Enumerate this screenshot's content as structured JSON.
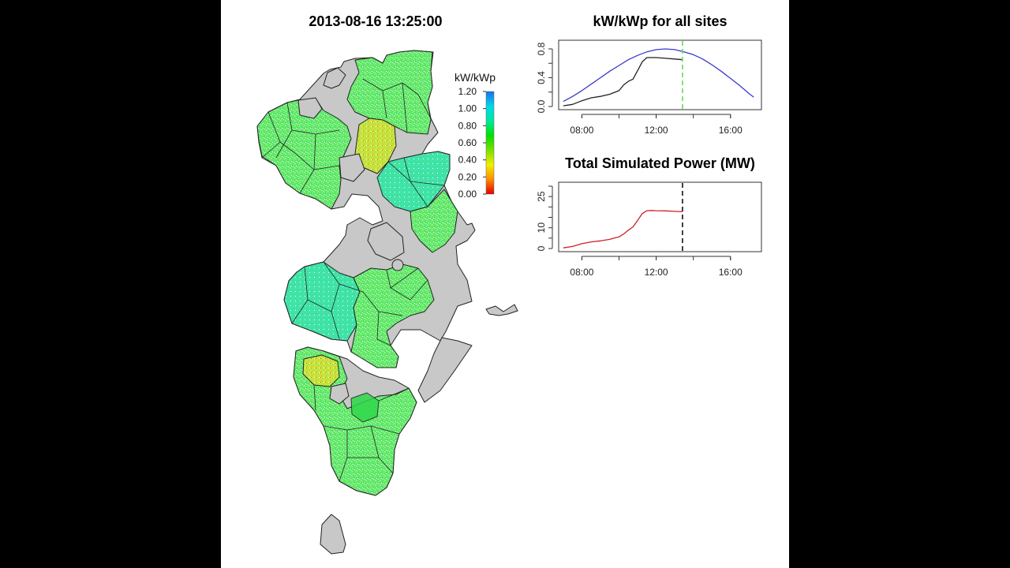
{
  "map": {
    "title": "2013-08-16 13:25:00",
    "legend_title": "kW/kWp",
    "legend_ticks": [
      "1.20",
      "1.00",
      "0.80",
      "0.60",
      "0.40",
      "0.20",
      "0.00"
    ],
    "legend_range": [
      0,
      1.2
    ],
    "legend_colors": [
      "#e00000",
      "#ff8c00",
      "#f0f000",
      "#7ae000",
      "#00e000",
      "#00e8a0",
      "#00d8e8",
      "#1e6ef0"
    ],
    "fill_no_data": "#c8c8c8",
    "typical_value": 0.6
  },
  "chart_data": [
    {
      "type": "line",
      "title": "kW/kWp for all sites",
      "xlabel": "",
      "ylabel": "",
      "x_ticks": [
        "08:00",
        "12:00",
        "16:00"
      ],
      "y_ticks": [
        "0.0",
        "0.4",
        "0.8"
      ],
      "xlim": [
        "06:45",
        "17:40"
      ],
      "ylim": [
        0,
        0.8
      ],
      "current_time": "13:25",
      "current_time_color": "#66dd55",
      "series": [
        {
          "color": "#3a3acc",
          "x": [
            "07:00",
            "07:30",
            "08:00",
            "08:30",
            "09:00",
            "09:30",
            "10:00",
            "10:30",
            "11:00",
            "11:30",
            "12:00",
            "12:30",
            "13:00",
            "13:30",
            "14:00",
            "14:30",
            "15:00",
            "15:30",
            "16:00",
            "16:30",
            "17:00",
            "17:15"
          ],
          "y": [
            0.07,
            0.14,
            0.22,
            0.31,
            0.4,
            0.49,
            0.57,
            0.65,
            0.71,
            0.76,
            0.79,
            0.8,
            0.79,
            0.76,
            0.72,
            0.66,
            0.58,
            0.49,
            0.39,
            0.29,
            0.18,
            0.13
          ]
        },
        {
          "color": "#222222",
          "x": [
            "07:00",
            "07:30",
            "08:00",
            "08:30",
            "09:00",
            "09:30",
            "10:00",
            "10:15",
            "10:30",
            "10:45",
            "11:00",
            "11:15",
            "11:30",
            "11:45",
            "12:00",
            "12:30",
            "13:00",
            "13:25"
          ],
          "y": [
            0.01,
            0.03,
            0.08,
            0.12,
            0.14,
            0.17,
            0.22,
            0.3,
            0.35,
            0.38,
            0.5,
            0.62,
            0.68,
            0.68,
            0.68,
            0.67,
            0.66,
            0.65
          ]
        }
      ]
    },
    {
      "type": "line",
      "title": "Total Simulated Power (MW)",
      "xlabel": "",
      "ylabel": "",
      "x_ticks": [
        "08:00",
        "12:00",
        "16:00"
      ],
      "y_ticks": [
        "0",
        "10",
        "25"
      ],
      "xlim": [
        "06:45",
        "17:40"
      ],
      "ylim": [
        0,
        30
      ],
      "current_time": "13:25",
      "current_time_color": "#111111",
      "series": [
        {
          "color": "#cc2222",
          "x": [
            "07:00",
            "07:30",
            "08:00",
            "08:30",
            "09:00",
            "09:30",
            "10:00",
            "10:15",
            "10:30",
            "10:45",
            "11:00",
            "11:15",
            "11:30",
            "11:45",
            "12:00",
            "12:30",
            "13:00",
            "13:25"
          ],
          "y": [
            0.3,
            1.0,
            2.3,
            3.2,
            3.7,
            4.4,
            5.6,
            7.0,
            8.8,
            10.4,
            13.5,
            16.8,
            18.2,
            18.3,
            18.2,
            18.1,
            17.9,
            17.7
          ]
        }
      ]
    }
  ]
}
